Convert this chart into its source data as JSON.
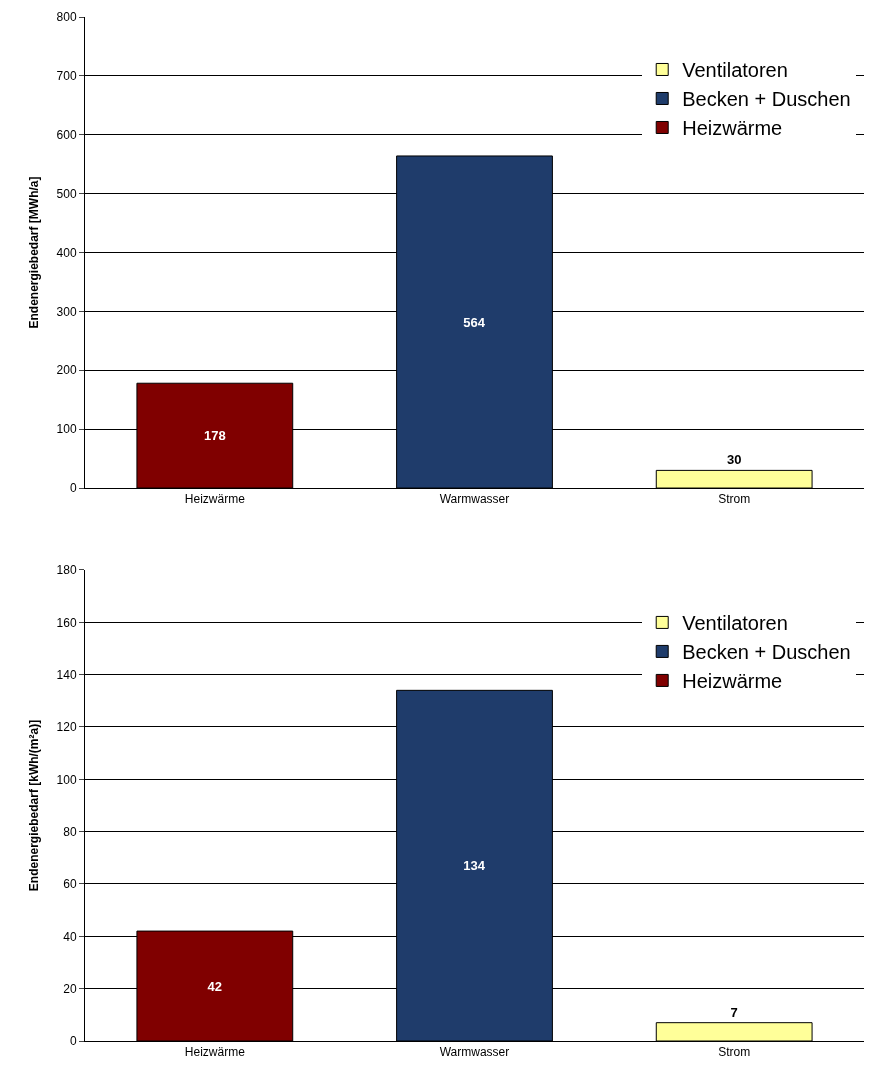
{
  "chart_data": [
    {
      "type": "bar",
      "stacked": true,
      "ylabel": "Endenergiebedarf [MWh/a]",
      "categories": [
        "Heizwärme",
        "Warmwasser",
        "Strom"
      ],
      "series": [
        {
          "name": "Heizwärme",
          "color": "#800000",
          "values": [
            178,
            null,
            null
          ]
        },
        {
          "name": "Becken + Duschen",
          "color": "#1f3c6b",
          "values": [
            null,
            564,
            null
          ]
        },
        {
          "name": "Ventilatoren",
          "color": "#ffff99",
          "values": [
            null,
            null,
            30
          ]
        }
      ],
      "ylim": [
        0,
        800
      ],
      "yticks": [
        0,
        100,
        200,
        300,
        400,
        500,
        600,
        700,
        800
      ],
      "grid": "y",
      "legend": "top right",
      "data_labels": true
    },
    {
      "type": "bar",
      "stacked": true,
      "ylabel": "Endenergiebedarf [kWh/(m²a)]",
      "categories": [
        "Heizwärme",
        "Warmwasser",
        "Strom"
      ],
      "series": [
        {
          "name": "Heizwärme",
          "color": "#800000",
          "values": [
            42,
            null,
            null
          ]
        },
        {
          "name": "Becken + Duschen",
          "color": "#1f3c6b",
          "values": [
            null,
            134,
            null
          ]
        },
        {
          "name": "Ventilatoren",
          "color": "#ffff99",
          "values": [
            null,
            null,
            7
          ]
        }
      ],
      "ylim": [
        0,
        180
      ],
      "yticks": [
        0,
        20,
        40,
        60,
        80,
        100,
        120,
        140,
        160,
        180
      ],
      "grid": "y",
      "legend": "top right",
      "data_labels": true
    }
  ]
}
